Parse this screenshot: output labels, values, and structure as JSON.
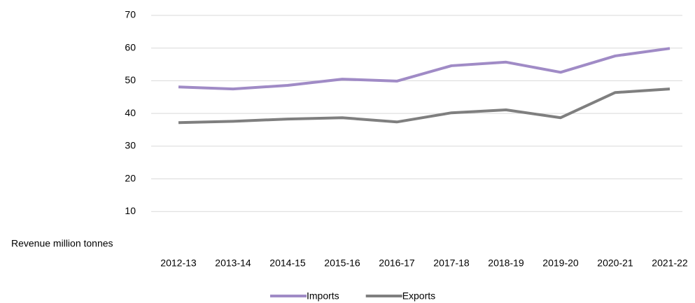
{
  "chart_data": {
    "type": "line",
    "y_label": "Revenue million tonnes",
    "categories": [
      "2012-13",
      "2013-14",
      "2014-15",
      "2015-16",
      "2016-17",
      "2017-18",
      "2018-19",
      "2019-20",
      "2020-21",
      "2021-22"
    ],
    "series": [
      {
        "name": "Imports",
        "color": "#a08bc6",
        "values": [
          48.1,
          47.5,
          48.6,
          50.5,
          49.9,
          54.6,
          55.7,
          52.6,
          57.6,
          59.9
        ]
      },
      {
        "name": "Exports",
        "color": "#7f7f7f",
        "values": [
          37.2,
          37.6,
          38.3,
          38.7,
          37.4,
          40.2,
          41.1,
          38.7,
          46.4,
          47.5
        ]
      }
    ],
    "ylim": [
      0,
      70
    ],
    "yticks": [
      10,
      20,
      30,
      40,
      50,
      60,
      70
    ],
    "grid": true,
    "legend": "bottom"
  }
}
